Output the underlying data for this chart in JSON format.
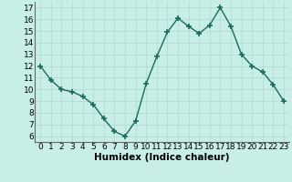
{
  "x": [
    0,
    1,
    2,
    3,
    4,
    5,
    6,
    7,
    8,
    9,
    10,
    11,
    12,
    13,
    14,
    15,
    16,
    17,
    18,
    19,
    20,
    21,
    22,
    23
  ],
  "y": [
    12,
    10.8,
    10,
    9.8,
    9.4,
    8.7,
    7.5,
    6.4,
    6.0,
    7.3,
    10.5,
    12.8,
    14.9,
    16.1,
    15.4,
    14.8,
    15.5,
    17.0,
    15.4,
    13.0,
    12.0,
    11.5,
    10.4,
    9.0
  ],
  "line_color": "#1a6b5a",
  "marker": "+",
  "markersize": 4,
  "markeredgewidth": 1.2,
  "linewidth": 1.0,
  "bg_color": "#c8eee8",
  "grid_color": "#b0d8cc",
  "xlabel": "Humidex (Indice chaleur)",
  "xlim": [
    -0.5,
    23.5
  ],
  "ylim": [
    5.5,
    17.5
  ],
  "yticks": [
    6,
    7,
    8,
    9,
    10,
    11,
    12,
    13,
    14,
    15,
    16,
    17
  ],
  "xticks": [
    0,
    1,
    2,
    3,
    4,
    5,
    6,
    7,
    8,
    9,
    10,
    11,
    12,
    13,
    14,
    15,
    16,
    17,
    18,
    19,
    20,
    21,
    22,
    23
  ],
  "xlabel_fontsize": 7.5,
  "tick_fontsize": 6.5
}
